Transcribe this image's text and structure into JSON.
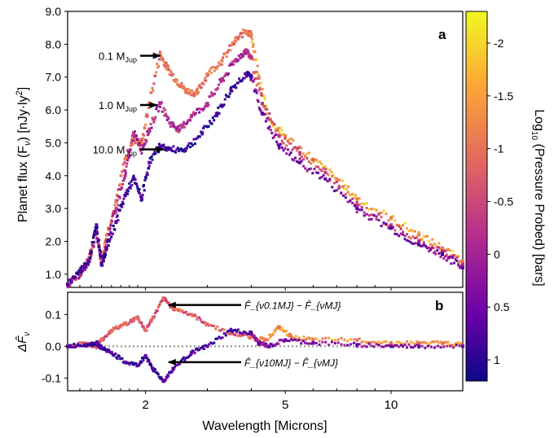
{
  "chart_data": [
    {
      "panel": "a",
      "type": "scatter",
      "ylabel": "Planet flux (F_ν) [nJy·ly²]",
      "xlabel": "",
      "xscale": "log",
      "xlim": [
        1.2,
        16
      ],
      "ylim": [
        0.6,
        9.0
      ],
      "yticks": [
        "1.0",
        "2.0",
        "3.0",
        "4.0",
        "5.0",
        "6.0",
        "7.0",
        "8.0",
        "9.0"
      ],
      "annotations": [
        {
          "label": "0.1 M",
          "sub": "Jup",
          "x": 2.25,
          "y": 7.65
        },
        {
          "label": "1.0 M",
          "sub": "Jup",
          "x": 2.2,
          "y": 6.15
        },
        {
          "label": "10.0 M",
          "sub": "Jup",
          "x": 2.3,
          "y": 4.8
        }
      ],
      "series": [
        {
          "name": "0.1 MJup",
          "color_pressure": -1.2,
          "points": [
            [
              1.2,
              0.7
            ],
            [
              1.3,
              1.0
            ],
            [
              1.38,
              1.5
            ],
            [
              1.45,
              2.3
            ],
            [
              1.5,
              1.4
            ],
            [
              1.55,
              2.2
            ],
            [
              1.65,
              3.2
            ],
            [
              1.75,
              4.5
            ],
            [
              1.85,
              5.1
            ],
            [
              1.95,
              5.0
            ],
            [
              2.05,
              6.2
            ],
            [
              2.2,
              7.7
            ],
            [
              2.3,
              7.3
            ],
            [
              2.45,
              6.9
            ],
            [
              2.6,
              6.6
            ],
            [
              2.8,
              6.5
            ],
            [
              3.0,
              7.1
            ],
            [
              3.3,
              7.5
            ],
            [
              3.6,
              8.1
            ],
            [
              3.85,
              8.4
            ],
            [
              4.0,
              8.3
            ],
            [
              4.2,
              7.0
            ],
            [
              4.5,
              5.7
            ],
            [
              5.0,
              5.2
            ],
            [
              6.0,
              4.5
            ],
            [
              7.0,
              3.9
            ],
            [
              8.0,
              3.3
            ],
            [
              10.0,
              2.7
            ],
            [
              12.0,
              2.2
            ],
            [
              14.0,
              1.8
            ],
            [
              16.0,
              1.4
            ]
          ]
        },
        {
          "name": "1.0 MJup",
          "color_pressure": -0.3,
          "points": [
            [
              1.2,
              0.7
            ],
            [
              1.3,
              1.0
            ],
            [
              1.38,
              1.4
            ],
            [
              1.45,
              2.3
            ],
            [
              1.5,
              1.3
            ],
            [
              1.55,
              2.0
            ],
            [
              1.65,
              3.0
            ],
            [
              1.75,
              4.0
            ],
            [
              1.85,
              5.3
            ],
            [
              1.95,
              4.8
            ],
            [
              2.05,
              5.4
            ],
            [
              2.2,
              6.2
            ],
            [
              2.35,
              5.6
            ],
            [
              2.5,
              5.4
            ],
            [
              2.7,
              5.8
            ],
            [
              3.0,
              6.2
            ],
            [
              3.3,
              6.9
            ],
            [
              3.6,
              7.5
            ],
            [
              3.85,
              7.8
            ],
            [
              4.0,
              7.6
            ],
            [
              4.3,
              6.2
            ],
            [
              4.8,
              5.2
            ],
            [
              5.5,
              4.7
            ],
            [
              6.5,
              4.1
            ],
            [
              8.0,
              3.1
            ],
            [
              10.0,
              2.5
            ],
            [
              12.0,
              2.0
            ],
            [
              14.0,
              1.7
            ],
            [
              16.0,
              1.3
            ]
          ]
        },
        {
          "name": "10.0 MJup",
          "color_pressure": 0.7,
          "points": [
            [
              1.2,
              0.7
            ],
            [
              1.3,
              1.1
            ],
            [
              1.38,
              1.4
            ],
            [
              1.45,
              2.5
            ],
            [
              1.5,
              1.3
            ],
            [
              1.55,
              1.8
            ],
            [
              1.65,
              2.6
            ],
            [
              1.75,
              3.4
            ],
            [
              1.85,
              3.9
            ],
            [
              1.95,
              3.3
            ],
            [
              2.05,
              4.4
            ],
            [
              2.2,
              4.9
            ],
            [
              2.35,
              4.8
            ],
            [
              2.6,
              4.8
            ],
            [
              2.9,
              5.3
            ],
            [
              3.2,
              5.9
            ],
            [
              3.5,
              6.6
            ],
            [
              3.85,
              7.1
            ],
            [
              4.0,
              7.0
            ],
            [
              4.3,
              5.9
            ],
            [
              4.8,
              4.9
            ],
            [
              5.5,
              4.4
            ],
            [
              6.5,
              3.9
            ],
            [
              8.0,
              3.0
            ],
            [
              10.0,
              2.4
            ],
            [
              12.0,
              1.9
            ],
            [
              14.0,
              1.6
            ],
            [
              16.0,
              1.2
            ]
          ]
        }
      ]
    },
    {
      "panel": "b",
      "type": "scatter",
      "ylabel": "ΔF̂_ν",
      "xlabel": "Wavelength [Microns]",
      "xscale": "log",
      "xlim": [
        1.2,
        16
      ],
      "ylim": [
        -0.14,
        0.17
      ],
      "xticks": [
        {
          "value": 2,
          "label": "2"
        },
        {
          "value": 5,
          "label": "5"
        },
        {
          "value": 10,
          "label": "10"
        }
      ],
      "yticks": [
        "0.1",
        "0.0",
        "-0.1"
      ],
      "annotations": [
        {
          "label": "F̂_{ν0.1MJ} − F̂_{νMJ}",
          "x": 2.35,
          "y": 0.13
        },
        {
          "label": "F̂_{ν10MJ} − F̂_{νMJ}",
          "x": 2.35,
          "y": -0.05
        }
      ],
      "series": [
        {
          "name": "0.1MJ - MJ",
          "color_pressure": -1.0,
          "points": [
            [
              1.2,
              0.0
            ],
            [
              1.35,
              0.01
            ],
            [
              1.45,
              0.0
            ],
            [
              1.5,
              0.02
            ],
            [
              1.6,
              0.05
            ],
            [
              1.75,
              0.07
            ],
            [
              1.9,
              0.09
            ],
            [
              2.0,
              0.05
            ],
            [
              2.1,
              0.09
            ],
            [
              2.25,
              0.15
            ],
            [
              2.4,
              0.12
            ],
            [
              2.7,
              0.1
            ],
            [
              3.0,
              0.07
            ],
            [
              3.5,
              0.04
            ],
            [
              4.0,
              0.03
            ],
            [
              4.4,
              0.02
            ],
            [
              4.8,
              0.06
            ],
            [
              5.2,
              0.03
            ],
            [
              6.0,
              0.02
            ],
            [
              8.0,
              0.02
            ],
            [
              10.0,
              0.01
            ],
            [
              12.0,
              0.01
            ],
            [
              14.0,
              0.01
            ],
            [
              16.0,
              0.005
            ]
          ]
        },
        {
          "name": "10MJ - MJ",
          "color_pressure": 0.6,
          "points": [
            [
              1.2,
              0.0
            ],
            [
              1.35,
              0.005
            ],
            [
              1.45,
              0.01
            ],
            [
              1.5,
              -0.005
            ],
            [
              1.6,
              -0.02
            ],
            [
              1.75,
              -0.05
            ],
            [
              1.9,
              -0.06
            ],
            [
              2.0,
              -0.03
            ],
            [
              2.1,
              -0.07
            ],
            [
              2.25,
              -0.11
            ],
            [
              2.4,
              -0.07
            ],
            [
              2.7,
              -0.02
            ],
            [
              3.0,
              0.0
            ],
            [
              3.5,
              0.05
            ],
            [
              4.0,
              0.04
            ],
            [
              4.2,
              0.01
            ],
            [
              4.5,
              0.0
            ],
            [
              5.0,
              0.02
            ],
            [
              6.0,
              0.01
            ],
            [
              8.0,
              0.005
            ],
            [
              10.0,
              0.0
            ],
            [
              12.0,
              0.0
            ],
            [
              16.0,
              0.0
            ]
          ]
        }
      ]
    }
  ],
  "labels": {
    "panel_a": "a",
    "panel_b": "b",
    "ylabel_a": "Planet flux (F",
    "ylabel_a_sub": "ν",
    "ylabel_a_tail": ") [nJy·ly",
    "ylabel_a_sup": "2",
    "ylabel_a_end": "]",
    "ylabel_b": "ΔF̂",
    "ylabel_b_sub": "ν",
    "xlabel": "Wavelength [Microns]",
    "colorbar_label": "Log",
    "colorbar_label_sub": "10",
    "colorbar_label_tail": " (Pressure Probed) [bars]"
  },
  "colorbar": {
    "ticks": [
      "-2",
      "-1.5",
      "-1",
      "-0.5",
      "0",
      "0.5",
      "1"
    ],
    "tick_values": [
      -2,
      -1.5,
      -1,
      -0.5,
      0,
      0.5,
      1
    ],
    "range": [
      -2.3,
      1.2
    ],
    "colors": [
      "#f0f921",
      "#fca636",
      "#e16462",
      "#b12a90",
      "#6a00a8",
      "#0d0887"
    ]
  }
}
